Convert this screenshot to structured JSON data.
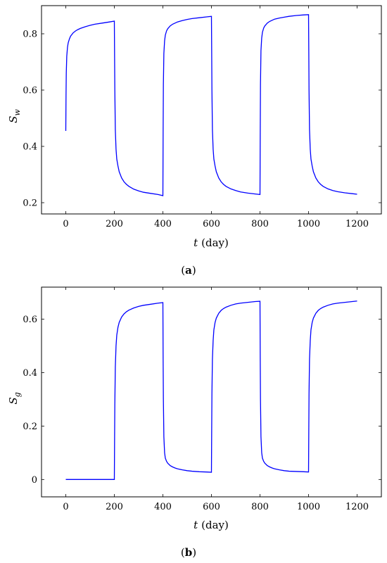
{
  "chart_data": [
    {
      "type": "line",
      "caption_letter": "a",
      "xlabel_var": "t",
      "xlabel_unit": "(day)",
      "ylabel_var": "S",
      "ylabel_sub": "w",
      "xlim": [
        -100,
        1300
      ],
      "ylim": [
        0.16,
        0.9
      ],
      "x_ticks": [
        0,
        200,
        400,
        600,
        800,
        1000,
        1200
      ],
      "x_tick_labels": [
        "0",
        "200",
        "400",
        "600",
        "800",
        "1000",
        "1200"
      ],
      "y_ticks": [
        0.2,
        0.4,
        0.6,
        0.8
      ],
      "y_tick_labels": [
        "0.2",
        "0.4",
        "0.6",
        "0.8"
      ],
      "line_color": "#0000ff",
      "series": [
        {
          "x": [
            0,
            1,
            2,
            4,
            7,
            10,
            15,
            20,
            30,
            40,
            50,
            60,
            80,
            100,
            120,
            150,
            180,
            200,
            201,
            202,
            204,
            207,
            210,
            215,
            220,
            230,
            240,
            250,
            260,
            280,
            300,
            320,
            350,
            380,
            400,
            401,
            402,
            404,
            407,
            410,
            415,
            420,
            430,
            440,
            450,
            460,
            480,
            500,
            520,
            550,
            580,
            600,
            601,
            602,
            604,
            607,
            610,
            615,
            620,
            630,
            640,
            650,
            660,
            680,
            700,
            720,
            750,
            780,
            800,
            801,
            802,
            804,
            807,
            810,
            815,
            820,
            830,
            840,
            850,
            860,
            880,
            900,
            920,
            950,
            980,
            1000,
            1001,
            1002,
            1004,
            1007,
            1010,
            1015,
            1020,
            1030,
            1040,
            1050,
            1060,
            1080,
            1100,
            1120,
            1150,
            1180,
            1200
          ],
          "y": [
            0.455,
            0.58,
            0.66,
            0.72,
            0.752,
            0.768,
            0.782,
            0.792,
            0.803,
            0.81,
            0.815,
            0.819,
            0.825,
            0.83,
            0.834,
            0.838,
            0.842,
            0.845,
            0.72,
            0.6,
            0.46,
            0.39,
            0.355,
            0.33,
            0.31,
            0.288,
            0.274,
            0.265,
            0.258,
            0.248,
            0.242,
            0.237,
            0.233,
            0.229,
            0.225,
            0.45,
            0.62,
            0.73,
            0.775,
            0.795,
            0.81,
            0.818,
            0.828,
            0.834,
            0.838,
            0.842,
            0.847,
            0.851,
            0.854,
            0.857,
            0.86,
            0.862,
            0.74,
            0.6,
            0.46,
            0.39,
            0.355,
            0.33,
            0.31,
            0.288,
            0.274,
            0.265,
            0.258,
            0.249,
            0.243,
            0.238,
            0.234,
            0.231,
            0.229,
            0.45,
            0.62,
            0.74,
            0.785,
            0.805,
            0.82,
            0.828,
            0.838,
            0.844,
            0.848,
            0.852,
            0.856,
            0.859,
            0.862,
            0.865,
            0.867,
            0.868,
            0.74,
            0.6,
            0.46,
            0.39,
            0.355,
            0.33,
            0.31,
            0.288,
            0.274,
            0.265,
            0.258,
            0.249,
            0.243,
            0.239,
            0.235,
            0.232,
            0.23
          ]
        }
      ]
    },
    {
      "type": "line",
      "caption_letter": "b",
      "xlabel_var": "t",
      "xlabel_unit": "(day)",
      "ylabel_var": "S",
      "ylabel_sub": "g",
      "xlim": [
        -100,
        1300
      ],
      "ylim": [
        -0.065,
        0.72
      ],
      "x_ticks": [
        0,
        200,
        400,
        600,
        800,
        1000,
        1200
      ],
      "x_tick_labels": [
        "0",
        "200",
        "400",
        "600",
        "800",
        "1000",
        "1200"
      ],
      "y_ticks": [
        0,
        0.2,
        0.4,
        0.6
      ],
      "y_tick_labels": [
        "0",
        "0.2",
        "0.4",
        "0.6"
      ],
      "line_color": "#0000ff",
      "series": [
        {
          "x": [
            0,
            100,
            200,
            201,
            202,
            204,
            207,
            210,
            215,
            220,
            230,
            240,
            250,
            260,
            280,
            300,
            320,
            350,
            380,
            400,
            401,
            402,
            404,
            407,
            410,
            415,
            420,
            430,
            440,
            450,
            460,
            480,
            500,
            520,
            550,
            580,
            600,
            601,
            602,
            604,
            607,
            610,
            615,
            620,
            630,
            640,
            650,
            660,
            680,
            700,
            720,
            750,
            780,
            800,
            801,
            802,
            804,
            807,
            810,
            815,
            820,
            830,
            840,
            850,
            860,
            880,
            900,
            920,
            950,
            980,
            1000,
            1001,
            1002,
            1004,
            1007,
            1010,
            1015,
            1020,
            1030,
            1040,
            1050,
            1060,
            1080,
            1100,
            1120,
            1150,
            1180,
            1200
          ],
          "y": [
            0,
            0,
            0,
            0.15,
            0.28,
            0.42,
            0.5,
            0.54,
            0.57,
            0.588,
            0.608,
            0.62,
            0.628,
            0.634,
            0.642,
            0.648,
            0.652,
            0.656,
            0.66,
            0.662,
            0.45,
            0.3,
            0.16,
            0.1,
            0.08,
            0.068,
            0.061,
            0.052,
            0.047,
            0.043,
            0.04,
            0.036,
            0.033,
            0.031,
            0.029,
            0.028,
            0.027,
            0.18,
            0.32,
            0.45,
            0.52,
            0.56,
            0.588,
            0.604,
            0.622,
            0.633,
            0.64,
            0.645,
            0.652,
            0.657,
            0.66,
            0.663,
            0.666,
            0.667,
            0.45,
            0.3,
            0.16,
            0.1,
            0.08,
            0.068,
            0.061,
            0.052,
            0.047,
            0.043,
            0.04,
            0.036,
            0.033,
            0.031,
            0.03,
            0.029,
            0.028,
            0.18,
            0.32,
            0.45,
            0.52,
            0.56,
            0.588,
            0.604,
            0.622,
            0.633,
            0.64,
            0.645,
            0.652,
            0.657,
            0.66,
            0.663,
            0.666,
            0.668
          ]
        }
      ]
    }
  ]
}
